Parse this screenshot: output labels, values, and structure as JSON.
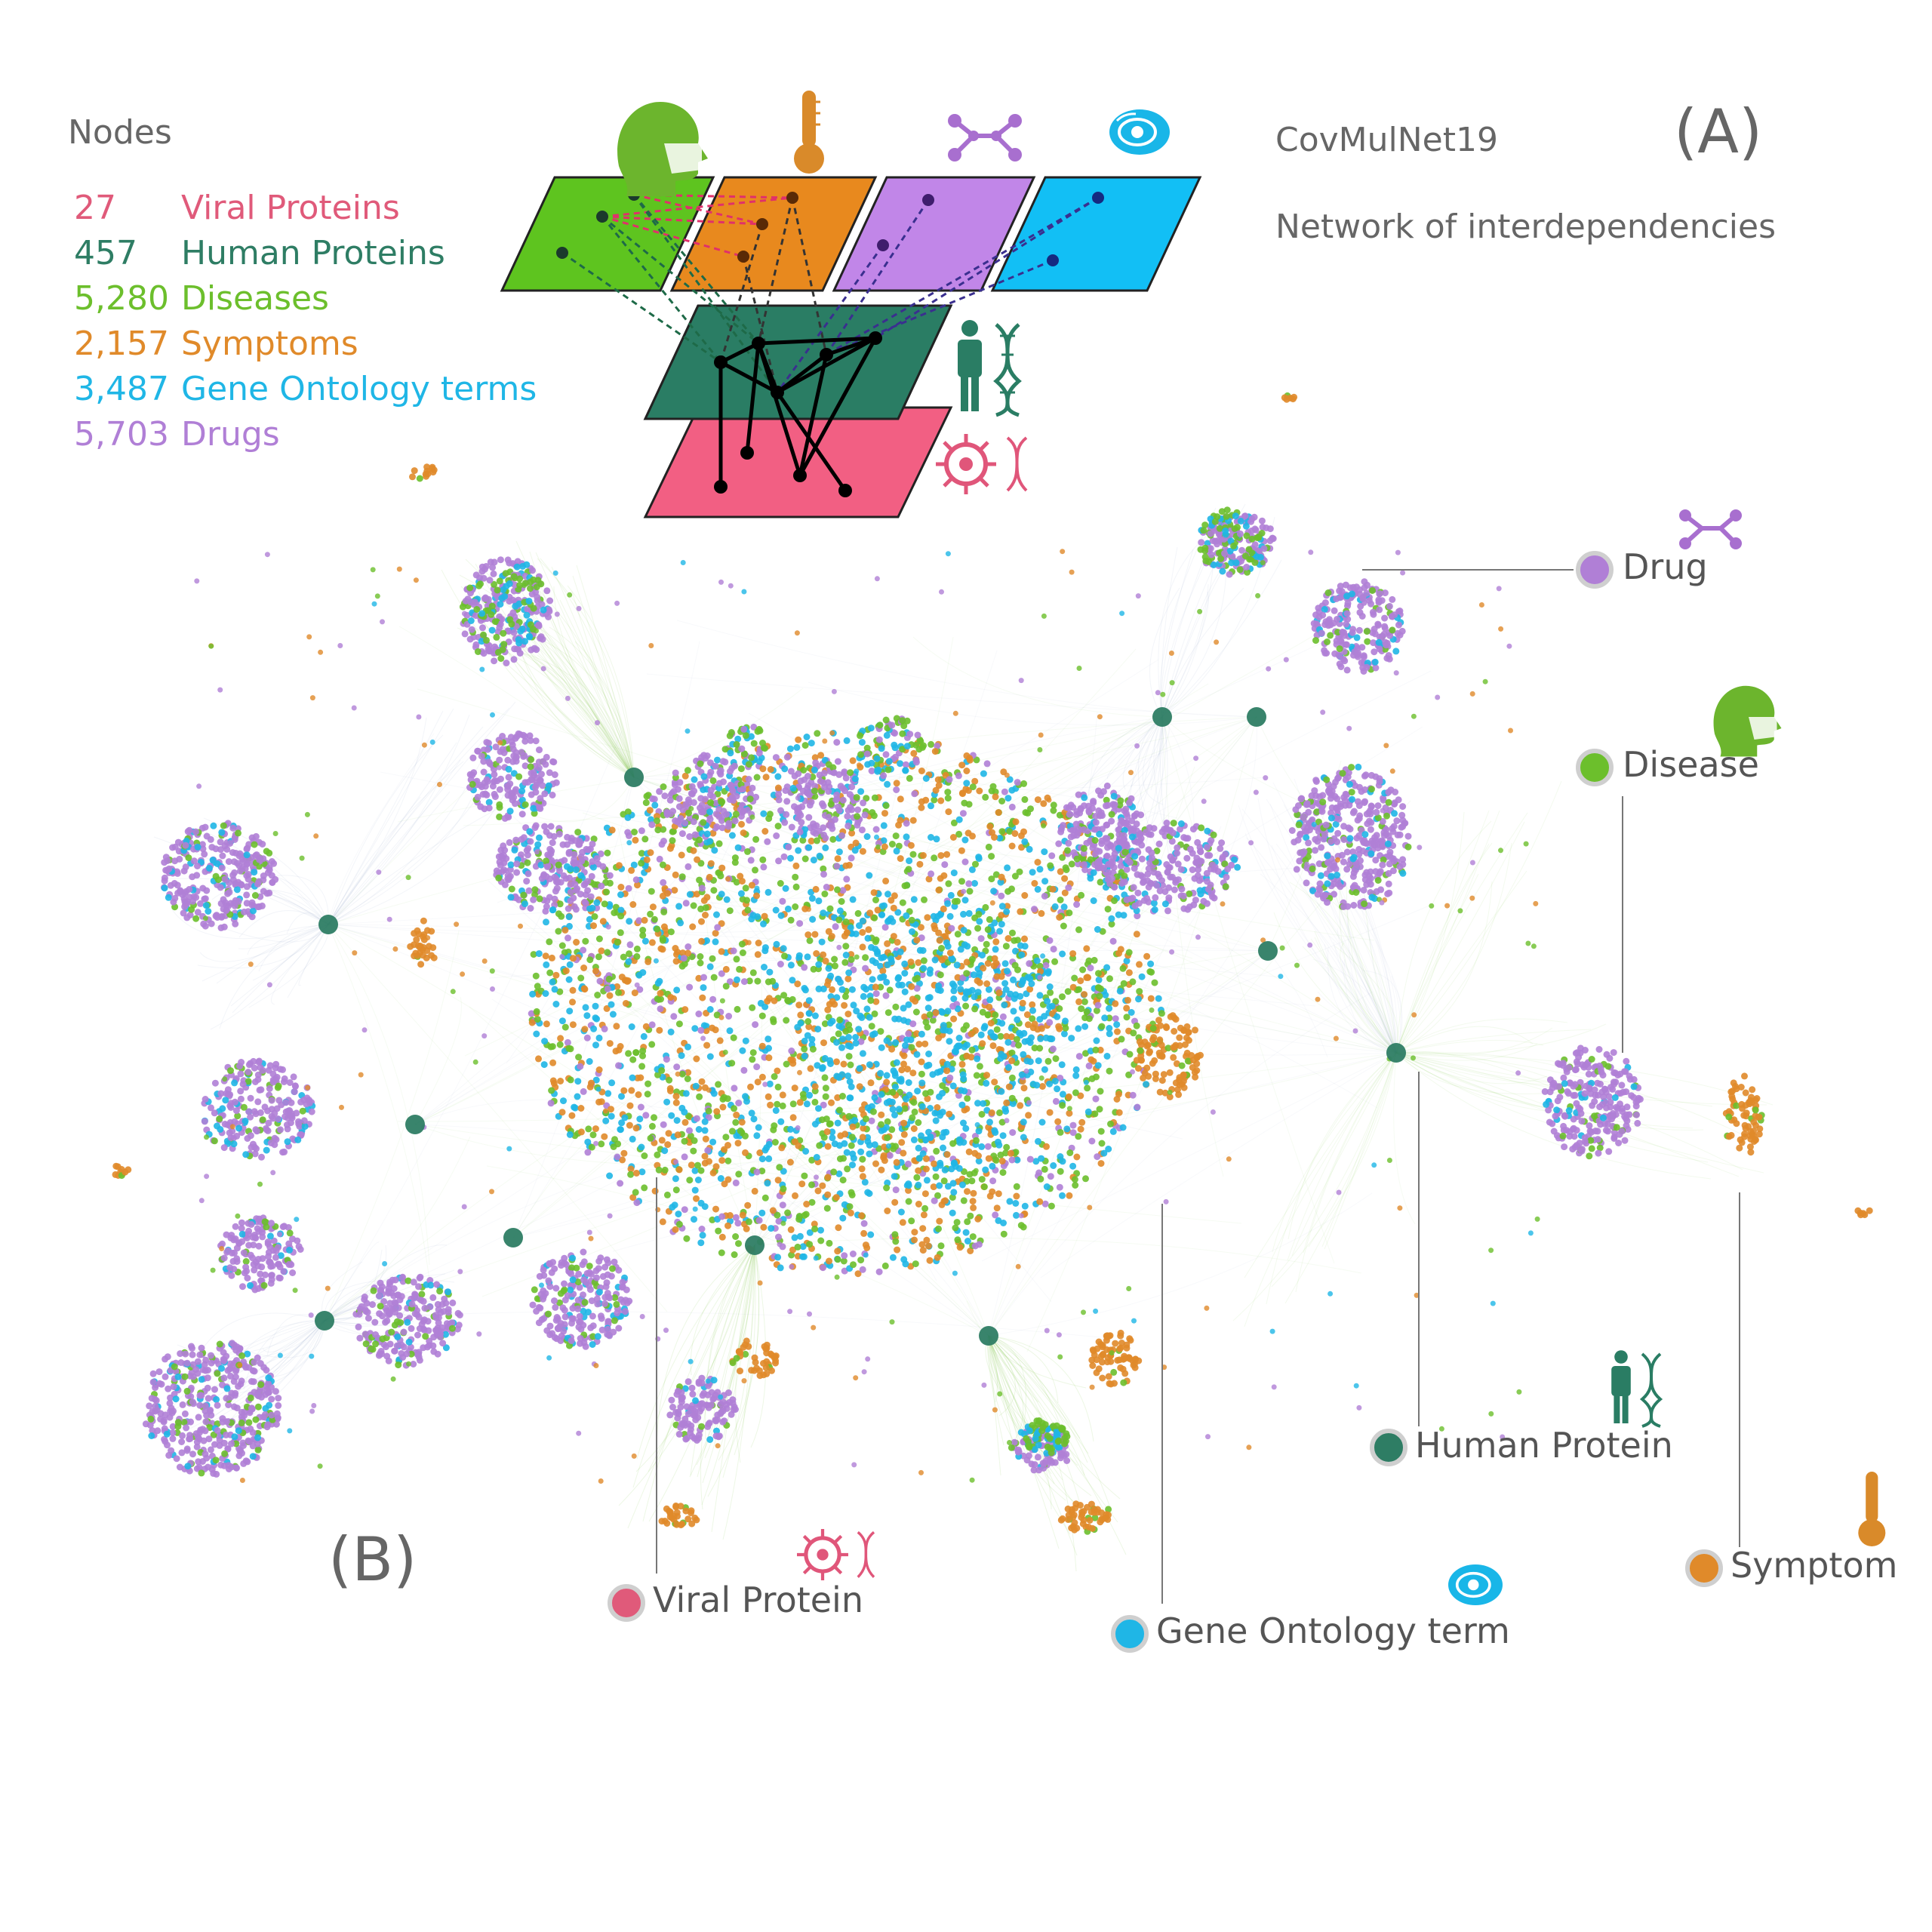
{
  "legend": {
    "title": "Nodes",
    "items": [
      {
        "count": "27",
        "label": "Viral Proteins",
        "color": "#e05a7a"
      },
      {
        "count": "457",
        "label": "Human Proteins",
        "color": "#2e7d64"
      },
      {
        "count": "5,280",
        "label": "Diseases",
        "color": "#6cbf2c"
      },
      {
        "count": "2,157",
        "label": "Symptoms",
        "color": "#e08a2a"
      },
      {
        "count": "3,487",
        "label": "Gene Ontology terms",
        "color": "#1fb6e6"
      },
      {
        "count": "5,703",
        "label": "Drugs",
        "color": "#b07fd6"
      }
    ]
  },
  "network": {
    "name": "CovMulNet19",
    "subtitle": "Network of interdependencies"
  },
  "panels": {
    "a": "(A)",
    "b": "(B)"
  },
  "node_types": {
    "drug": {
      "label": "Drug",
      "color": "#b07fd6",
      "icon": "molecule-icon"
    },
    "disease": {
      "label": "Disease",
      "color": "#6cbf2c",
      "icon": "masked-head-icon"
    },
    "human_protein": {
      "label": "Human Protein",
      "color": "#2e7d64",
      "icon": "person-dna-icon"
    },
    "symptom": {
      "label": "Symptom",
      "color": "#e08a2a",
      "icon": "thermometer-icon"
    },
    "viral_protein": {
      "label": "Viral Protein",
      "color": "#e05a7a",
      "icon": "virus-dna-icon"
    },
    "gene_ontology": {
      "label": "Gene Ontology term",
      "color": "#1fb6e6",
      "icon": "cell-icon"
    }
  },
  "colors": {
    "disease_layer": "#5ec41f",
    "symptom_layer": "#e8891e",
    "drug_layer": "#c186e8",
    "go_layer": "#12bff5",
    "human_layer": "#2a7d64",
    "viral_layer": "#f25f83"
  }
}
